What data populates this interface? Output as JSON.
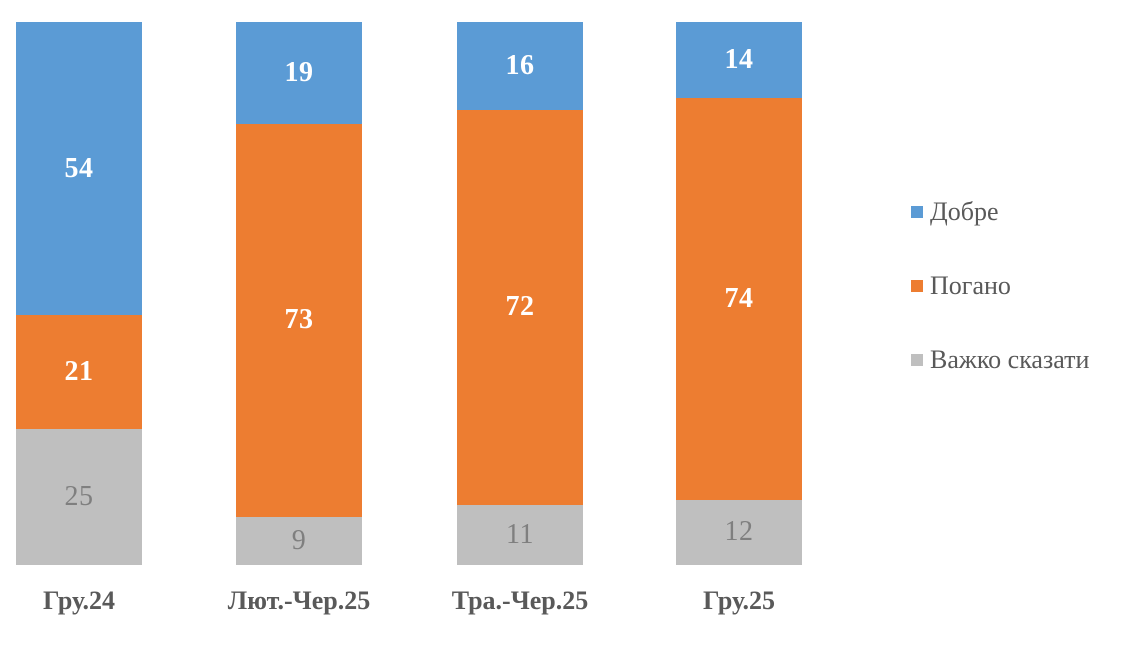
{
  "chart_data": {
    "type": "bar",
    "variant": "stacked-column",
    "title": "",
    "xlabel": "",
    "ylabel": "",
    "grid": false,
    "axes_visible": false,
    "legend_position": "right",
    "categories": [
      "Гру.24",
      "Лют.-Чер.25",
      "Тра.-Чер.25",
      "Гру.25"
    ],
    "series": [
      {
        "name": "Добре",
        "color": "#5B9BD5",
        "label_color": "#FFFFFF",
        "values": [
          54,
          19,
          16,
          14
        ]
      },
      {
        "name": "Погано",
        "color": "#ED7D31",
        "label_color": "#FFFFFF",
        "values": [
          21,
          73,
          72,
          74
        ]
      },
      {
        "name": "Важко сказати",
        "color": "#BFBFBF",
        "label_color": "#7F7F7F",
        "values": [
          25,
          9,
          11,
          12
        ]
      }
    ],
    "category_label_color": "#595959",
    "legend_text_color": "#595959",
    "background_color": "#FFFFFF"
  }
}
